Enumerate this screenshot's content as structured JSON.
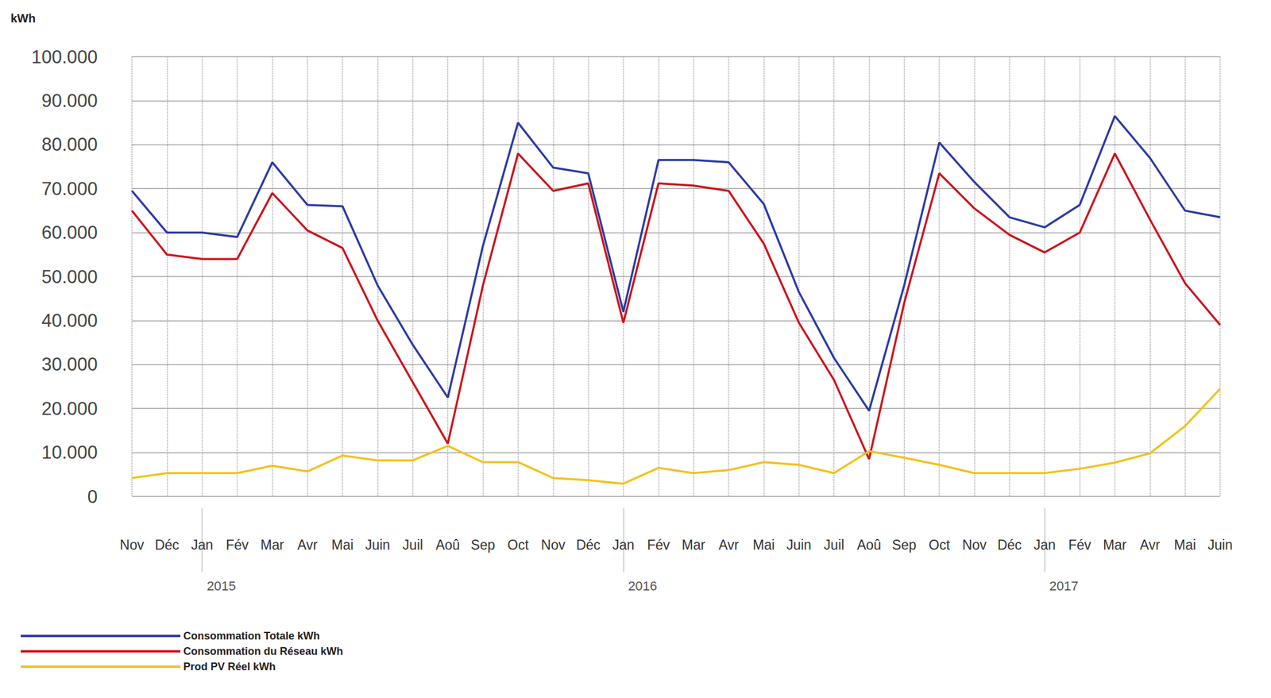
{
  "chart_data": {
    "type": "line",
    "y_label": "kWh",
    "categories": [
      "Nov",
      "Déc",
      "Jan",
      "Fév",
      "Mar",
      "Avr",
      "Mai",
      "Juin",
      "Juil",
      "Aoû",
      "Sep",
      "Oct",
      "Nov",
      "Déc",
      "Jan",
      "Fév",
      "Mar",
      "Avr",
      "Mai",
      "Juin",
      "Juil",
      "Aoû",
      "Sep",
      "Oct",
      "Nov",
      "Déc",
      "Jan",
      "Fév",
      "Mar",
      "Avr",
      "Mai",
      "Juin"
    ],
    "year_row": [
      null,
      null,
      "2015",
      null,
      null,
      null,
      null,
      null,
      null,
      null,
      null,
      null,
      null,
      null,
      "2016",
      null,
      null,
      null,
      null,
      null,
      null,
      null,
      null,
      null,
      null,
      null,
      "2017",
      null,
      null,
      null,
      null,
      null
    ],
    "series": [
      {
        "name": "Consommation Totale kWh",
        "color": "#2b3aa6",
        "values": [
          69500,
          60000,
          60000,
          59000,
          76000,
          66300,
          66000,
          48000,
          34500,
          22500,
          57000,
          85000,
          74800,
          73500,
          42000,
          76500,
          76500,
          76000,
          66500,
          46500,
          31500,
          19500,
          48000,
          80500,
          71500,
          63500,
          61200,
          66300,
          86500,
          77000,
          65000,
          63500
        ]
      },
      {
        "name": "Consommation du Réseau kWh",
        "color": "#cc141c",
        "values": [
          65000,
          55000,
          54000,
          54000,
          69000,
          60500,
          56500,
          40000,
          26000,
          12000,
          48000,
          78000,
          69500,
          71200,
          39500,
          71200,
          70700,
          69500,
          57500,
          39500,
          26500,
          8500,
          44000,
          73500,
          65500,
          59500,
          55500,
          60000,
          78000,
          63000,
          48500,
          39000
        ]
      },
      {
        "name": "Prod PV Réel kWh",
        "color": "#f2c21b",
        "values": [
          4200,
          5300,
          5300,
          5300,
          7000,
          5700,
          9300,
          8200,
          8200,
          11500,
          7800,
          7800,
          4200,
          3700,
          2900,
          6500,
          5300,
          6000,
          7800,
          7200,
          5300,
          10300,
          8800,
          7200,
          5300,
          5300,
          5300,
          6300,
          7700,
          9800,
          16000,
          24500
        ]
      }
    ],
    "ylim": [
      0,
      100000
    ],
    "yticks": [
      {
        "value": 0,
        "label": "0"
      },
      {
        "value": 10000,
        "label": "10.000"
      },
      {
        "value": 20000,
        "label": "20.000"
      },
      {
        "value": 30000,
        "label": "30.000"
      },
      {
        "value": 40000,
        "label": "40.000"
      },
      {
        "value": 50000,
        "label": "50.000"
      },
      {
        "value": 60000,
        "label": "60.000"
      },
      {
        "value": 70000,
        "label": "70.000"
      },
      {
        "value": 80000,
        "label": "80.000"
      },
      {
        "value": 90000,
        "label": "90.000"
      },
      {
        "value": 100000,
        "label": "100.000"
      }
    ],
    "grid": true,
    "legend": "bottom-left"
  }
}
